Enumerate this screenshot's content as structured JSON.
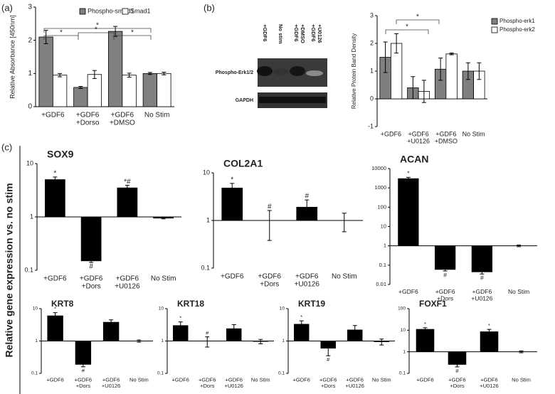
{
  "panel_labels": [
    "(a)",
    "(b)",
    "(c)"
  ],
  "c_ylabel": "Relative gene expression vs. no stim",
  "blot": {
    "lanes": [
      [
        "+GDF6"
      ],
      [
        "No stim"
      ],
      [
        "+GDF6",
        "+DMSO"
      ],
      [
        "+GDF6",
        "+U0126"
      ]
    ],
    "rows": [
      "Phospho-Erk1/2",
      "GAPDH"
    ]
  },
  "chart_data": [
    {
      "type": "bar",
      "ylabel": "Relative Absorbance [450nm]",
      "legend": "top",
      "categories": [
        [
          "+GDF6"
        ],
        [
          "+GDF6",
          "+Dorso"
        ],
        [
          "+GDF6",
          "+DMSO"
        ],
        [
          "No Stim"
        ]
      ],
      "series": [
        {
          "name": "Phospho-smad1",
          "color": "#808080",
          "values": [
            2.1,
            0.58,
            2.27,
            1.0
          ],
          "errors": [
            0.2,
            0.03,
            0.15,
            0.03
          ]
        },
        {
          "name": "Smad1",
          "color": "#ffffff",
          "values": [
            0.95,
            0.97,
            0.95,
            1.0
          ],
          "errors": [
            0.05,
            0.12,
            0.06,
            0.04
          ]
        }
      ],
      "ylim": [
        0,
        3
      ],
      "yticks": [
        0,
        1,
        2,
        3
      ],
      "annotations": [
        "*",
        "*",
        "*",
        "*"
      ]
    },
    {
      "type": "bar",
      "ylabel": "Relative Protein Band Density",
      "legend": "right",
      "categories": [
        [
          "+GDF6"
        ],
        [
          "+GDF6",
          "+U0126"
        ],
        [
          "+GDF6",
          "+DMSO"
        ],
        [
          "No Stim"
        ]
      ],
      "series": [
        {
          "name": "Phospho-erk1",
          "color": "#7f7f7f",
          "values": [
            1.5,
            0.4,
            1.07,
            1.0
          ],
          "errors": [
            0.55,
            0.4,
            0.4,
            0.3
          ]
        },
        {
          "name": "Phospho-erk2",
          "color": "#ffffff",
          "values": [
            2.0,
            0.27,
            1.62,
            1.0
          ],
          "errors": [
            0.35,
            0.4,
            0.03,
            0.3
          ]
        }
      ],
      "ylim": [
        -1,
        3
      ],
      "yticks": [
        -1,
        0,
        1,
        2,
        3
      ],
      "annotations": [
        "*",
        "*"
      ]
    },
    {
      "type": "bar",
      "title": "SOX9",
      "log_scale": true,
      "categories": [
        [
          "+GDF6"
        ],
        [
          "+GDF6",
          "+Dors"
        ],
        [
          "+GDF6",
          "+U0126"
        ],
        [
          "No Stim"
        ]
      ],
      "series": [
        {
          "color": "#000000",
          "values": [
            5,
            0.15,
            3.5,
            0.95
          ],
          "errors": [
            0.6,
            0.01,
            0.4,
            0.03
          ],
          "marks": [
            "*",
            "#",
            "*#",
            null
          ]
        }
      ],
      "ylim": [
        0.1,
        10
      ],
      "yticks": [
        0.1,
        1,
        10
      ]
    },
    {
      "type": "bar",
      "title": "COL2A1",
      "log_scale": true,
      "categories": [
        [
          "+GDF6"
        ],
        [
          "+GDF6",
          "+Dors"
        ],
        [
          "+GDF6",
          "+U0126"
        ],
        [
          "No Stim"
        ]
      ],
      "series": [
        {
          "color": "#000000",
          "values": [
            4.8,
            1.0,
            1.9,
            1.0
          ],
          "errors": [
            1.2,
            0.62,
            0.8,
            0.42
          ],
          "marks": [
            "*",
            "#",
            "#",
            null
          ]
        }
      ],
      "ylim": [
        0.1,
        10
      ],
      "yticks": [
        0.1,
        1,
        10
      ]
    },
    {
      "type": "bar",
      "title": "ACAN",
      "log_scale": true,
      "categories": [
        [
          "+GDF6"
        ],
        [
          "+GDF6",
          "+Dors"
        ],
        [
          "+GDF6",
          "+U0126"
        ],
        [
          "No Stim"
        ]
      ],
      "series": [
        {
          "color": "#000000",
          "values": [
            3000,
            0.06,
            0.045,
            1.0
          ],
          "errors": [
            500,
            0.01,
            0.01,
            0.1
          ],
          "marks": [
            "*",
            "#",
            "#",
            null
          ]
        }
      ],
      "ylim": [
        0.01,
        10000
      ],
      "yticks": [
        0.01,
        0.1,
        1,
        10,
        100,
        1000,
        10000
      ]
    },
    {
      "type": "bar",
      "title": "KRT8",
      "log_scale": true,
      "categories": [
        [
          "+GDF6"
        ],
        [
          "+GDF6",
          "+Dors"
        ],
        [
          "+GDF6",
          "+U0126"
        ],
        [
          "No Stim"
        ]
      ],
      "series": [
        {
          "color": "#000000",
          "values": [
            6,
            0.19,
            3.8,
            1.0
          ],
          "errors": [
            1.5,
            0.03,
            0.7,
            0.08
          ],
          "marks": [
            "*",
            "#",
            null,
            null
          ]
        }
      ],
      "ylim": [
        0.1,
        10
      ],
      "yticks": [
        0.1,
        1,
        10
      ]
    },
    {
      "type": "bar",
      "title": "KRT18",
      "log_scale": true,
      "categories": [
        [
          "+GDF6"
        ],
        [
          "+GDF6",
          "+Dors"
        ],
        [
          "+GDF6",
          "+U0126"
        ],
        [
          "No Stim"
        ]
      ],
      "series": [
        {
          "color": "#000000",
          "values": [
            3,
            1.0,
            2.4,
            0.97
          ],
          "errors": [
            0.9,
            0.35,
            0.8,
            0.15
          ],
          "marks": [
            "*",
            "#",
            null,
            null
          ]
        }
      ],
      "ylim": [
        0.1,
        10
      ],
      "yticks": [
        0.1,
        1,
        10
      ]
    },
    {
      "type": "bar",
      "title": "KRT19",
      "log_scale": true,
      "categories": [
        [
          "+GDF6"
        ],
        [
          "+GDF6",
          "+Dors"
        ],
        [
          "+GDF6",
          "+U0126"
        ],
        [
          "No Stim"
        ]
      ],
      "series": [
        {
          "color": "#000000",
          "values": [
            3.3,
            0.6,
            2.2,
            0.95
          ],
          "errors": [
            0.9,
            0.25,
            0.8,
            0.2
          ],
          "marks": [
            "*",
            "#",
            null,
            null
          ]
        }
      ],
      "ylim": [
        0.1,
        10
      ],
      "yticks": [
        0.1,
        1,
        10
      ]
    },
    {
      "type": "bar",
      "title": "FOXF1",
      "log_scale": true,
      "categories": [
        [
          "+GDF6"
        ],
        [
          "+GDF6",
          "+Dors"
        ],
        [
          "+GDF6",
          "+U0126"
        ],
        [
          "No Stim"
        ]
      ],
      "series": [
        {
          "color": "#000000",
          "values": [
            11,
            0.26,
            8.5,
            1.0
          ],
          "errors": [
            2,
            0.06,
            2.5,
            0.1
          ],
          "marks": [
            "*",
            "#",
            "*",
            null
          ]
        }
      ],
      "ylim": [
        0.1,
        100
      ],
      "yticks": [
        0.1,
        1,
        10,
        100
      ]
    }
  ]
}
